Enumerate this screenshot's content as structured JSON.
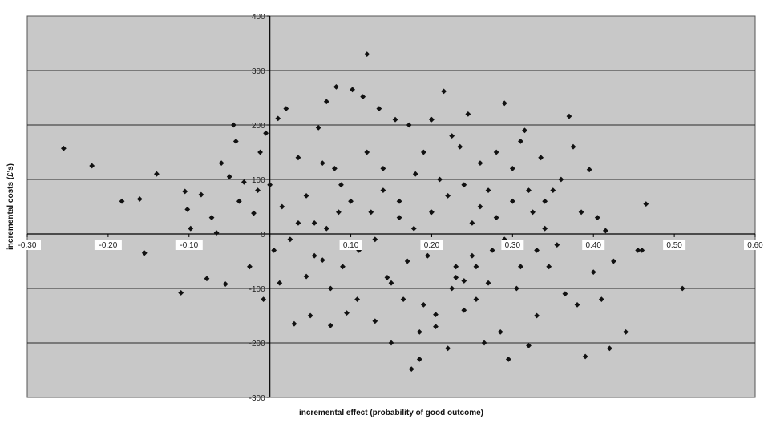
{
  "chart_data": {
    "type": "scatter",
    "title": "",
    "xlabel": "incremental effect (probability of good outcome)",
    "ylabel": "incremental costs (£'s)",
    "xlim": [
      -0.3,
      0.6
    ],
    "ylim": [
      -300,
      400
    ],
    "x_ticks": [
      -0.3,
      -0.2,
      -0.1,
      0,
      0.1,
      0.2,
      0.3,
      0.4,
      0.5,
      0.6
    ],
    "x_tick_labels": [
      "-0.30",
      "-0.20",
      "-0.10",
      "",
      "0.10",
      "0.20",
      "0.30",
      "0.40",
      "0.50",
      "0.60"
    ],
    "y_ticks": [
      -300,
      -200,
      -100,
      0,
      100,
      200,
      300,
      400
    ],
    "y_tick_labels": [
      "-300",
      "-200",
      "-100",
      "0",
      "100",
      "200",
      "300",
      "400"
    ],
    "grid": {
      "horizontal": true,
      "vertical": false
    },
    "plot_background": "#c8c8c8",
    "marker": "diamond",
    "marker_color": "#111111",
    "series": [
      {
        "points": [
          [
            -0.255,
            157
          ],
          [
            -0.22,
            125
          ],
          [
            -0.183,
            60
          ],
          [
            -0.161,
            64
          ],
          [
            -0.155,
            -35
          ],
          [
            -0.14,
            110
          ],
          [
            -0.11,
            -108
          ],
          [
            -0.105,
            78
          ],
          [
            -0.102,
            45
          ],
          [
            -0.098,
            10
          ],
          [
            -0.092,
            -20
          ],
          [
            -0.085,
            72
          ],
          [
            -0.078,
            -82
          ],
          [
            -0.072,
            30
          ],
          [
            -0.066,
            2
          ],
          [
            -0.06,
            130
          ],
          [
            -0.055,
            -92
          ],
          [
            -0.05,
            105
          ],
          [
            -0.045,
            200
          ],
          [
            -0.042,
            170
          ],
          [
            -0.038,
            60
          ],
          [
            -0.032,
            95
          ],
          [
            -0.025,
            -60
          ],
          [
            -0.02,
            38
          ],
          [
            -0.015,
            80
          ],
          [
            -0.012,
            150
          ],
          [
            -0.008,
            -120
          ],
          [
            -0.005,
            185
          ],
          [
            0.01,
            212
          ],
          [
            0.02,
            230
          ],
          [
            0.012,
            -90
          ],
          [
            0.03,
            -165
          ],
          [
            0.035,
            140
          ],
          [
            0.045,
            -78
          ],
          [
            0.05,
            -150
          ],
          [
            0.055,
            20
          ],
          [
            0.06,
            195
          ],
          [
            0.065,
            -48
          ],
          [
            0.07,
            243
          ],
          [
            0.075,
            -168
          ],
          [
            0.082,
            270
          ],
          [
            0.088,
            90
          ],
          [
            0.095,
            -145
          ],
          [
            0.102,
            265
          ],
          [
            0.108,
            -120
          ],
          [
            0.115,
            252
          ],
          [
            0.12,
            330
          ],
          [
            0.125,
            40
          ],
          [
            0.13,
            -160
          ],
          [
            0.135,
            230
          ],
          [
            0.14,
            120
          ],
          [
            0.145,
            -80
          ],
          [
            0.15,
            -200
          ],
          [
            0.155,
            210
          ],
          [
            0.16,
            60
          ],
          [
            0.165,
            -120
          ],
          [
            0.172,
            200
          ],
          [
            0.178,
            10
          ],
          [
            0.185,
            -180
          ],
          [
            0.19,
            150
          ],
          [
            0.195,
            -40
          ],
          [
            0.2,
            210
          ],
          [
            0.205,
            -170
          ],
          [
            0.21,
            100
          ],
          [
            0.215,
            262
          ],
          [
            0.22,
            -210
          ],
          [
            0.225,
            180
          ],
          [
            0.23,
            -60
          ],
          [
            0.235,
            160
          ],
          [
            0.24,
            -140
          ],
          [
            0.245,
            220
          ],
          [
            0.25,
            20
          ],
          [
            0.255,
            -120
          ],
          [
            0.26,
            130
          ],
          [
            0.265,
            -200
          ],
          [
            0.27,
            80
          ],
          [
            0.275,
            -30
          ],
          [
            0.28,
            150
          ],
          [
            0.285,
            -180
          ],
          [
            0.29,
            240
          ],
          [
            0.295,
            -230
          ],
          [
            0.3,
            60
          ],
          [
            0.305,
            -100
          ],
          [
            0.31,
            170
          ],
          [
            0.315,
            190
          ],
          [
            0.32,
            -205
          ],
          [
            0.325,
            40
          ],
          [
            0.33,
            -150
          ],
          [
            0.335,
            140
          ],
          [
            0.34,
            10
          ],
          [
            0.345,
            -60
          ],
          [
            0.35,
            80
          ],
          [
            0.355,
            -20
          ],
          [
            0.36,
            100
          ],
          [
            0.365,
            -110
          ],
          [
            0.37,
            216
          ],
          [
            0.375,
            160
          ],
          [
            0.38,
            -130
          ],
          [
            0.385,
            40
          ],
          [
            0.39,
            -225
          ],
          [
            0.395,
            118
          ],
          [
            0.4,
            -70
          ],
          [
            0.405,
            30
          ],
          [
            0.41,
            -120
          ],
          [
            0.415,
            6
          ],
          [
            0.42,
            -210
          ],
          [
            0.425,
            -50
          ],
          [
            0.44,
            -180
          ],
          [
            0.455,
            -30
          ],
          [
            0.46,
            -30
          ],
          [
            0.465,
            55
          ],
          [
            0.51,
            -100
          ],
          [
            0.175,
            -248
          ],
          [
            0.185,
            -230
          ],
          [
            0.205,
            -148
          ],
          [
            0.225,
            -100
          ],
          [
            0.24,
            -86
          ],
          [
            0.255,
            -60
          ],
          [
            0.07,
            10
          ],
          [
            0.08,
            120
          ],
          [
            0.09,
            -60
          ],
          [
            0.1,
            60
          ],
          [
            0.11,
            -30
          ],
          [
            0.12,
            150
          ],
          [
            0.13,
            -10
          ],
          [
            0.14,
            80
          ],
          [
            0.15,
            -90
          ],
          [
            0.16,
            30
          ],
          [
            0.17,
            -50
          ],
          [
            0.18,
            110
          ],
          [
            0.19,
            -130
          ],
          [
            0.2,
            40
          ],
          [
            0.21,
            -20
          ],
          [
            0.22,
            70
          ],
          [
            0.23,
            -80
          ],
          [
            0.24,
            90
          ],
          [
            0.25,
            -40
          ],
          [
            0.26,
            50
          ],
          [
            0.27,
            -90
          ],
          [
            0.28,
            30
          ],
          [
            0.29,
            -10
          ],
          [
            0.3,
            120
          ],
          [
            0.31,
            -60
          ],
          [
            0.32,
            80
          ],
          [
            0.33,
            -30
          ],
          [
            0.34,
            60
          ],
          [
            0.0,
            90
          ],
          [
            0.005,
            -30
          ],
          [
            0.015,
            50
          ],
          [
            0.025,
            -10
          ],
          [
            0.035,
            20
          ],
          [
            0.045,
            70
          ],
          [
            0.055,
            -40
          ],
          [
            0.065,
            130
          ],
          [
            0.075,
            -100
          ],
          [
            0.085,
            40
          ]
        ]
      }
    ]
  }
}
